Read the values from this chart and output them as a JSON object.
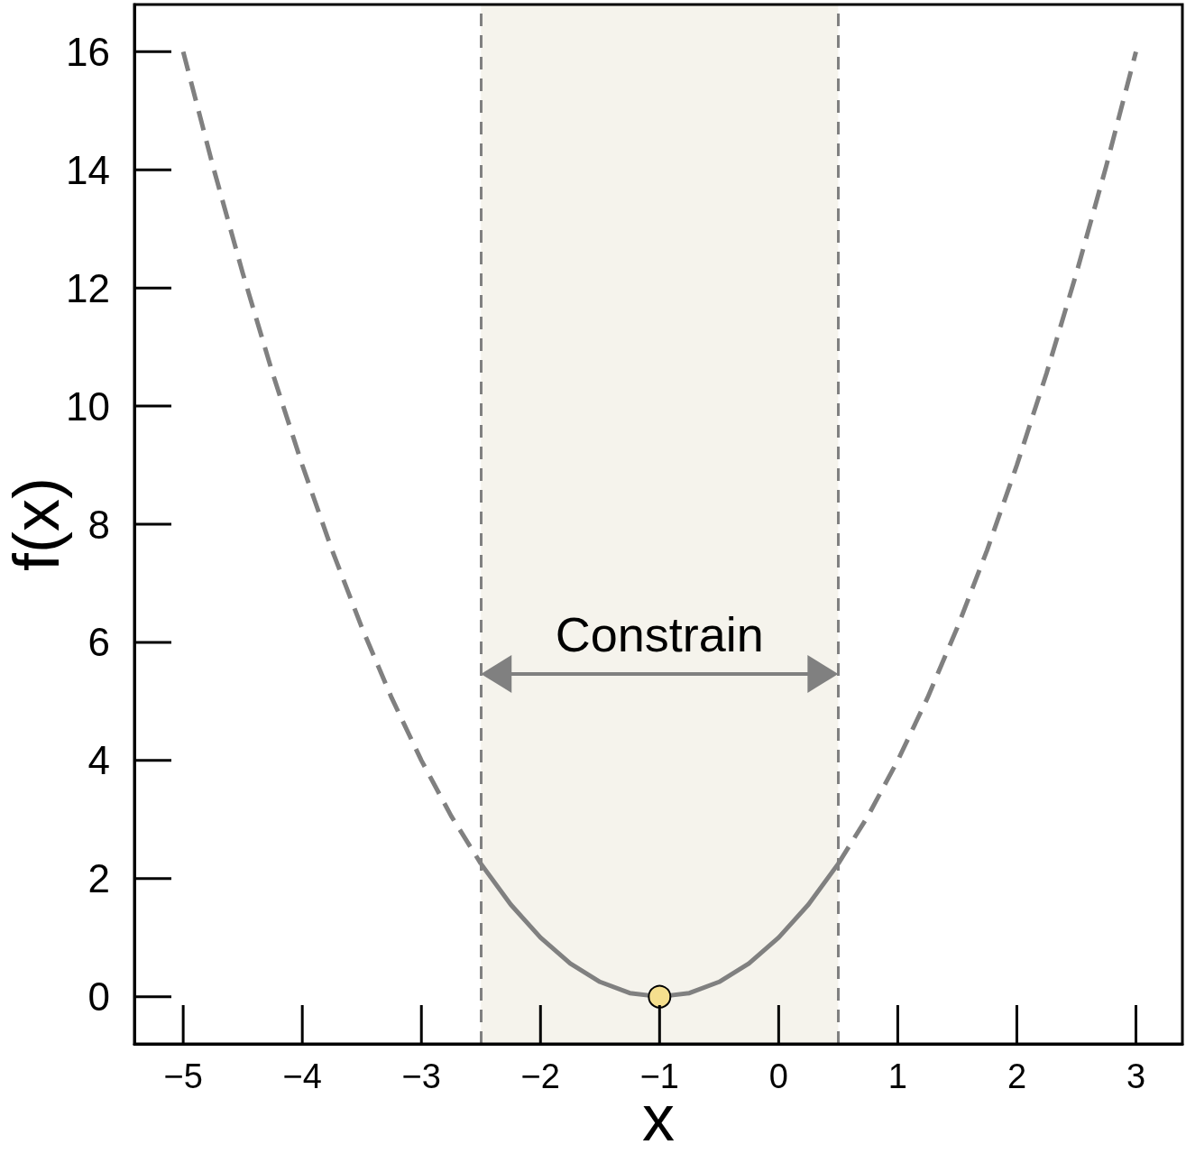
{
  "chart_data": {
    "type": "line",
    "xlabel": "x",
    "ylabel": "f(x)",
    "xlim": [
      -5.41,
      3.39
    ],
    "xticks": [
      {
        "value": -5,
        "label": "−5"
      },
      {
        "value": -4,
        "label": "−4"
      },
      {
        "value": -3,
        "label": "−3"
      },
      {
        "value": -2,
        "label": "−2"
      },
      {
        "value": -1,
        "label": "−1"
      },
      0,
      1,
      2,
      3
    ],
    "ylim": [
      -0.8,
      16.8
    ],
    "yticks": [
      0,
      2,
      4,
      6,
      8,
      10,
      12,
      14,
      16
    ],
    "series": [
      {
        "color": "#808080",
        "line_style": "dashed",
        "x": [
          -5,
          -4.75,
          -4.5,
          -4.25,
          -4,
          -3.75,
          -3.5,
          -3.25,
          -3,
          -2.75,
          -2.5
        ],
        "values": [
          16,
          14.06,
          12.25,
          10.56,
          9,
          7.56,
          6.25,
          5.06,
          4,
          3.06,
          2.25
        ]
      },
      {
        "color": "#808080",
        "line_style": "solid",
        "x": [
          -2.5,
          -2.25,
          -2,
          -1.75,
          -1.5,
          -1.25,
          -1,
          -0.75,
          -0.5,
          -0.25,
          0,
          0.25,
          0.5
        ],
        "values": [
          2.25,
          1.56,
          1,
          0.56,
          0.25,
          0.06,
          0,
          0.06,
          0.25,
          0.56,
          1,
          1.56,
          2.25
        ]
      },
      {
        "color": "#808080",
        "line_style": "dashed",
        "x": [
          0.5,
          0.75,
          1,
          1.25,
          1.5,
          1.75,
          2,
          2.25,
          2.5,
          2.75,
          3
        ],
        "values": [
          2.25,
          3.06,
          4,
          5.06,
          6.25,
          7.56,
          9,
          10.56,
          12.25,
          14.06,
          16
        ]
      },
      {
        "type": "scatter",
        "color": "#f5df8e",
        "marker": "circle",
        "x": [
          -1
        ],
        "values": [
          0
        ]
      }
    ],
    "bands": [
      {
        "axis": "x",
        "from": -2.5,
        "to": 0.5,
        "label": "Constrain",
        "color": "#f5f3ec"
      }
    ],
    "ref_lines": [
      {
        "axis": "x",
        "value": -2.5,
        "color": "#808080",
        "line_style": "dashed"
      },
      {
        "axis": "x",
        "value": 0.5,
        "color": "#808080",
        "line_style": "dashed"
      }
    ]
  }
}
